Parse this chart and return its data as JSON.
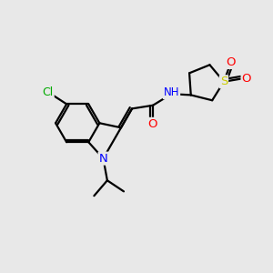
{
  "background_color": "#e8e8e8",
  "atom_colors": {
    "C": "#000000",
    "N": "#0000ff",
    "O": "#ff0000",
    "S": "#cccc00",
    "Cl": "#00aa00",
    "H": "#6fa0b0"
  },
  "bond_color": "#000000",
  "bond_width": 1.6,
  "figsize": [
    3.0,
    3.0
  ],
  "dpi": 100
}
